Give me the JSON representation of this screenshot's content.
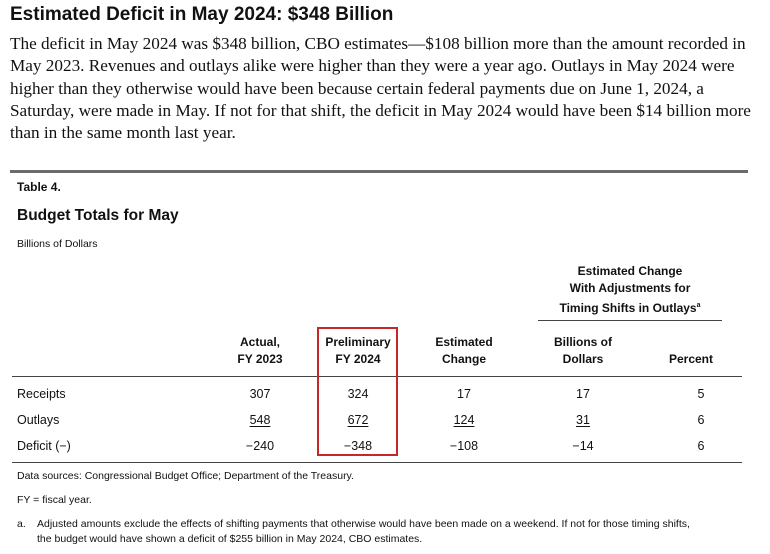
{
  "heading": "Estimated Deficit in May 2024: $348 Billion",
  "intro": "The deficit in May 2024 was $348 billion, CBO estimates—$108 billion more than the amount recorded in May 2023. Revenues and outlays alike were higher than they were a year ago. Outlays in May 2024 were higher than they otherwise would have been because certain federal payments due on June 1, 2024, a Saturday, were made in May. If not for that shift, the deficit in May 2024 would have been $14 billion more than in the same month last year.",
  "table": {
    "number": "Table 4.",
    "title": "Budget Totals for May",
    "units": "Billions of Dollars",
    "group_header": {
      "line1": "Estimated Change",
      "line2": "With Adjustments for",
      "line3": "Timing Shifts in Outlays",
      "footnote_mark": "a"
    },
    "columns": {
      "actual": [
        "Actual,",
        "FY 2023"
      ],
      "preliminary": [
        "Preliminary",
        "FY 2024"
      ],
      "estimated": [
        "Estimated",
        "Change"
      ],
      "billions": [
        "Billions of",
        "Dollars"
      ],
      "percent": [
        "Percent"
      ]
    },
    "rows": [
      {
        "label": "Receipts",
        "actual": "307",
        "preliminary": "324",
        "estimated": "17",
        "billions": "17",
        "percent": "5"
      },
      {
        "label": "Outlays",
        "actual": "548",
        "preliminary": "672",
        "estimated": "124",
        "billions": "31",
        "percent": "6"
      },
      {
        "label": "Deficit (−)",
        "actual": "−240",
        "preliminary": "−348",
        "estimated": "−108",
        "billions": "−14",
        "percent": "6"
      }
    ],
    "highlight_color": "#c62828"
  },
  "notes": {
    "sources": "Data sources: Congressional Budget Office; Department of the Treasury.",
    "fy": "FY = fiscal year.",
    "a_mark": "a.",
    "a_line1": "Adjusted amounts exclude the effects of shifting payments that otherwise would have been made on a weekend. If not for those timing shifts,",
    "a_line2": "the budget would have shown a deficit of $255 billion in May 2024, CBO estimates."
  }
}
